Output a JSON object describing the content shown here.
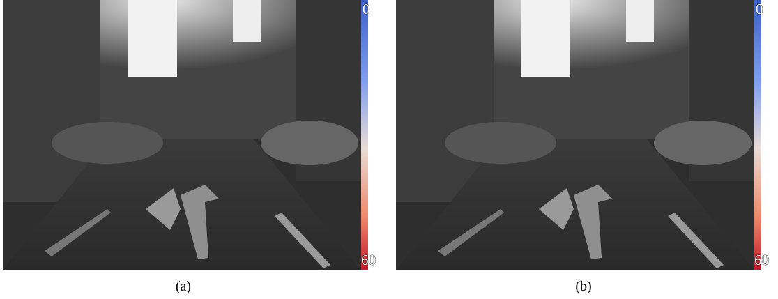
{
  "panels": [
    {
      "caption": "(a)",
      "colorbar": {
        "top_label": "0",
        "bottom_label": "60"
      }
    },
    {
      "caption": "(b)",
      "colorbar": {
        "top_label": "0",
        "bottom_label": "60"
      }
    }
  ]
}
